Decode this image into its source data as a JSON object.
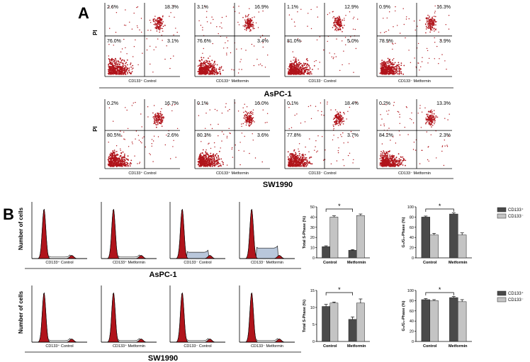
{
  "panel_a": {
    "label": "A",
    "y_axis_label": "PI",
    "rows": [
      {
        "cell_line": "AsPC-1",
        "plots": [
          {
            "caption": "CD133⁺ Control",
            "quadrants": [
              "2.6%",
              "18.3%",
              "76.0%",
              "3.1%"
            ]
          },
          {
            "caption": "CD133⁺ Metformin",
            "quadrants": [
              "3.1%",
              "16.9%",
              "76.6%",
              "3.4%"
            ]
          },
          {
            "caption": "CD133⁻ Control",
            "quadrants": [
              "1.1%",
              "12.9%",
              "81.0%",
              "5.0%"
            ]
          },
          {
            "caption": "CD133⁻ Metformin",
            "quadrants": [
              "0.9%",
              "16.3%",
              "78.9%",
              "3.9%"
            ]
          }
        ]
      },
      {
        "cell_line": "SW1990",
        "plots": [
          {
            "caption": "CD133⁺ Control",
            "quadrants": [
              "0.2%",
              "16.7%",
              "80.5%",
              "2.6%"
            ]
          },
          {
            "caption": "CD133⁺ Metformin",
            "quadrants": [
              "0.1%",
              "16.0%",
              "80.3%",
              "3.6%"
            ]
          },
          {
            "caption": "CD133⁻ Control",
            "quadrants": [
              "0.1%",
              "18.4%",
              "77.8%",
              "3.7%"
            ]
          },
          {
            "caption": "CD133⁻ Metformin",
            "quadrants": [
              "0.2%",
              "13.3%",
              "84.2%",
              "2.3%"
            ]
          }
        ]
      }
    ]
  },
  "panel_b": {
    "label": "B",
    "y_axis_label": "Number of cells",
    "rows": [
      {
        "cell_line": "AsPC-1",
        "captions": [
          "CD133⁺ Control",
          "CD133⁺ Metformin",
          "CD133⁻ Control",
          "CD133⁻ Metformin"
        ]
      },
      {
        "cell_line": "SW1990",
        "captions": [
          "CD133⁺ Control",
          "CD133⁺ Metformin",
          "CD133⁻ Control",
          "CD133⁻ Metformin"
        ]
      }
    ]
  },
  "chart_data": [
    {
      "type": "bar",
      "y_label": "Total S-Phase (%)",
      "categories": [
        "Control",
        "Metformin"
      ],
      "series": [
        {
          "name": "CD133⁺",
          "color": "#4a4a4a",
          "values": [
            11,
            7.5
          ],
          "errors": [
            0.8,
            0.6
          ]
        },
        {
          "name": "CD133⁻",
          "color": "#c4c4c4",
          "values": [
            40,
            41.5
          ],
          "errors": [
            1.2,
            1.5
          ]
        }
      ],
      "ylim": [
        0,
        50
      ],
      "yticks": [
        0,
        10,
        20,
        30,
        40,
        50
      ],
      "annotation": "*"
    },
    {
      "type": "bar",
      "y_label": "G₀/G₁-Phase (%)",
      "categories": [
        "Control",
        "Metformin"
      ],
      "series": [
        {
          "name": "CD133⁺",
          "color": "#4a4a4a",
          "values": [
            80,
            86
          ],
          "errors": [
            2,
            2
          ]
        },
        {
          "name": "CD133⁻",
          "color": "#c4c4c4",
          "values": [
            45,
            45
          ],
          "errors": [
            3,
            4
          ]
        }
      ],
      "ylim": [
        0,
        100
      ],
      "yticks": [
        0,
        20,
        40,
        60,
        80,
        100
      ],
      "annotation": "*",
      "legend": "right"
    },
    {
      "type": "bar",
      "y_label": "Total S-Phase (%)",
      "categories": [
        "Control",
        "Metformin"
      ],
      "series": [
        {
          "name": "CD133⁺",
          "color": "#4a4a4a",
          "values": [
            10.3,
            6.5
          ],
          "errors": [
            0.6,
            0.7
          ]
        },
        {
          "name": "CD133⁻",
          "color": "#c4c4c4",
          "values": [
            11.3,
            11.3
          ],
          "errors": [
            0.3,
            1.2
          ]
        }
      ],
      "ylim": [
        0,
        15
      ],
      "yticks": [
        0,
        5,
        10,
        15
      ],
      "annotation": "*"
    },
    {
      "type": "bar",
      "y_label": "G₀/G₁-Phase (%)",
      "categories": [
        "Control",
        "Metformin"
      ],
      "series": [
        {
          "name": "CD133⁺",
          "color": "#4a4a4a",
          "values": [
            82,
            86
          ],
          "errors": [
            2,
            2
          ]
        },
        {
          "name": "CD133⁻",
          "color": "#c4c4c4",
          "values": [
            80,
            78
          ],
          "errors": [
            2,
            4
          ]
        }
      ],
      "ylim": [
        0,
        100
      ],
      "yticks": [
        0,
        20,
        40,
        60,
        80,
        100
      ],
      "annotation": "*",
      "legend": "right"
    }
  ]
}
